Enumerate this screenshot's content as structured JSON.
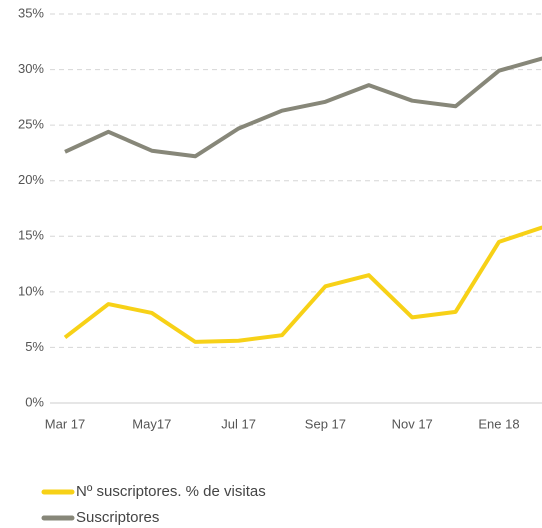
{
  "chart_data": {
    "type": "line",
    "categories": [
      "Mar 17",
      null,
      "May17",
      null,
      "Jul 17",
      null,
      "Sep 17",
      null,
      "Nov 17",
      null,
      "Ene 18",
      null
    ],
    "series": [
      {
        "name": "Nº suscriptores. % de visitas",
        "color": "#f7d117",
        "values": [
          5.9,
          8.9,
          8.1,
          5.5,
          5.6,
          6.1,
          10.5,
          11.5,
          7.7,
          8.2,
          14.5,
          15.8
        ]
      },
      {
        "name": "Suscriptores",
        "color": "#878779",
        "values": [
          22.6,
          24.4,
          22.7,
          22.2,
          24.7,
          26.3,
          27.1,
          28.6,
          27.2,
          26.7,
          29.9,
          31.0
        ]
      }
    ],
    "ylim": [
      0,
      35
    ],
    "yticks": [
      {
        "value": 0,
        "label": "0%"
      },
      {
        "value": 5,
        "label": "5%"
      },
      {
        "value": 10,
        "label": "10%"
      },
      {
        "value": 15,
        "label": "15%"
      },
      {
        "value": 20,
        "label": "20%"
      },
      {
        "value": 25,
        "label": "25%"
      },
      {
        "value": 30,
        "label": "30%"
      },
      {
        "value": 35,
        "label": "35%"
      }
    ],
    "grid": true,
    "legend": "bottom"
  }
}
